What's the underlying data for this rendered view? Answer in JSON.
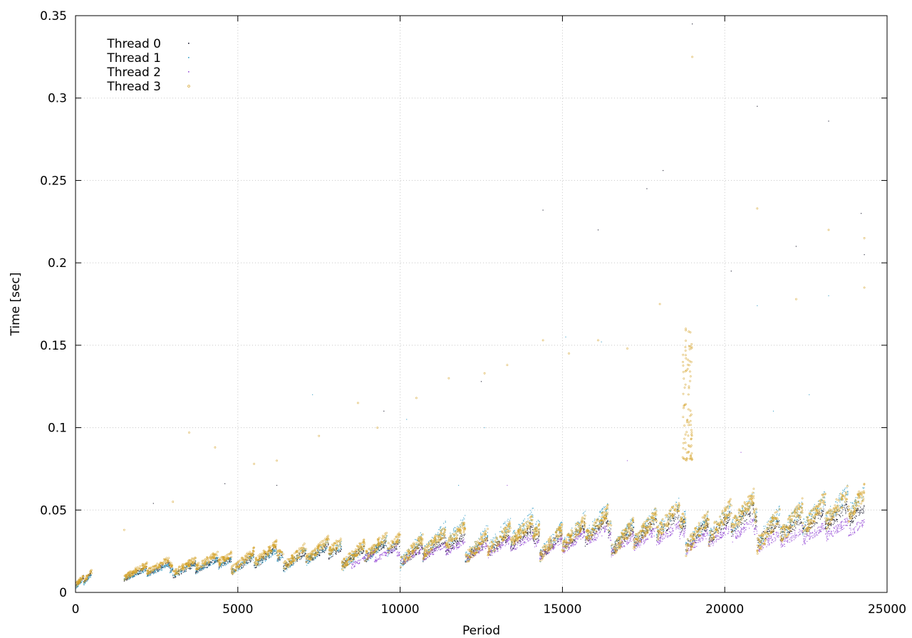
{
  "chart_data": {
    "type": "scatter",
    "title": "",
    "xlabel": "Period",
    "ylabel": "Time [sec]",
    "xlim": [
      0,
      25000
    ],
    "ylim": [
      0,
      0.35
    ],
    "xticks": [
      0,
      5000,
      10000,
      15000,
      20000,
      25000
    ],
    "xtick_labels": [
      "0",
      "5000",
      "10000",
      "15000",
      "20000",
      "25000"
    ],
    "yticks": [
      0,
      0.05,
      0.1,
      0.15,
      0.2,
      0.25,
      0.3,
      0.35
    ],
    "ytick_labels": [
      "0",
      "0.05",
      "0.1",
      "0.15",
      "0.2",
      "0.25",
      "0.3",
      "0.35"
    ],
    "grid": true,
    "legend_position": "top-left",
    "series": [
      {
        "name": "Thread 0",
        "color": "#1a1a2e",
        "marker": "dot",
        "segments": [
          [
            0,
            0.003,
            500,
            0.012
          ],
          [
            1500,
            0.008,
            3000,
            0.018
          ],
          [
            3000,
            0.01,
            4800,
            0.022
          ],
          [
            4800,
            0.012,
            6400,
            0.028
          ],
          [
            6400,
            0.015,
            8200,
            0.03
          ],
          [
            8200,
            0.016,
            10000,
            0.033
          ],
          [
            10000,
            0.017,
            12000,
            0.036
          ],
          [
            12000,
            0.02,
            14300,
            0.04
          ],
          [
            14300,
            0.022,
            16500,
            0.045
          ],
          [
            16500,
            0.025,
            18800,
            0.05
          ],
          [
            18800,
            0.027,
            21000,
            0.053
          ],
          [
            21000,
            0.03,
            24300,
            0.055
          ]
        ],
        "outliers": [
          [
            2400,
            0.054
          ],
          [
            4600,
            0.066
          ],
          [
            6200,
            0.065
          ],
          [
            9500,
            0.11
          ],
          [
            12500,
            0.128
          ],
          [
            14400,
            0.232
          ],
          [
            16100,
            0.22
          ],
          [
            17600,
            0.245
          ],
          [
            18100,
            0.256
          ],
          [
            19000,
            0.345
          ],
          [
            20200,
            0.195
          ],
          [
            21000,
            0.295
          ],
          [
            22200,
            0.21
          ],
          [
            23200,
            0.286
          ],
          [
            24200,
            0.23
          ],
          [
            24300,
            0.205
          ]
        ]
      },
      {
        "name": "Thread 1",
        "color": "#3aa0c8",
        "marker": "dot",
        "segments": [
          [
            0,
            0.003,
            500,
            0.011
          ],
          [
            1500,
            0.008,
            3000,
            0.017
          ],
          [
            3000,
            0.01,
            4800,
            0.022
          ],
          [
            4800,
            0.012,
            6400,
            0.027
          ],
          [
            6400,
            0.014,
            8200,
            0.032
          ],
          [
            8200,
            0.015,
            10000,
            0.035
          ],
          [
            10000,
            0.017,
            12000,
            0.045
          ],
          [
            12000,
            0.02,
            14300,
            0.05
          ],
          [
            14300,
            0.022,
            16500,
            0.052
          ],
          [
            16500,
            0.025,
            18800,
            0.055
          ],
          [
            18800,
            0.027,
            21000,
            0.058
          ],
          [
            21000,
            0.03,
            24300,
            0.065
          ]
        ],
        "outliers": [
          [
            7300,
            0.12
          ],
          [
            10200,
            0.105
          ],
          [
            11800,
            0.065
          ],
          [
            12600,
            0.1
          ],
          [
            15100,
            0.155
          ],
          [
            16200,
            0.152
          ],
          [
            21500,
            0.11
          ],
          [
            22600,
            0.12
          ],
          [
            23200,
            0.18
          ],
          [
            21000,
            0.174
          ]
        ]
      },
      {
        "name": "Thread 2",
        "color": "#9b55d8",
        "marker": "dot",
        "segments": [
          [
            8500,
            0.016,
            10000,
            0.028
          ],
          [
            10000,
            0.018,
            12000,
            0.032
          ],
          [
            12000,
            0.02,
            14300,
            0.036
          ],
          [
            14300,
            0.022,
            16500,
            0.04
          ],
          [
            16500,
            0.024,
            18800,
            0.042
          ],
          [
            18800,
            0.025,
            21000,
            0.044
          ],
          [
            21000,
            0.026,
            24300,
            0.045
          ]
        ],
        "outliers": [
          [
            13300,
            0.065
          ],
          [
            17000,
            0.08
          ],
          [
            20500,
            0.085
          ]
        ]
      },
      {
        "name": "Thread 3",
        "color": "#d4a22a",
        "marker": "circle",
        "segments": [
          [
            0,
            0.004,
            500,
            0.013
          ],
          [
            1500,
            0.009,
            3000,
            0.021
          ],
          [
            3000,
            0.011,
            4800,
            0.026
          ],
          [
            4800,
            0.013,
            6400,
            0.031
          ],
          [
            6400,
            0.015,
            8200,
            0.035
          ],
          [
            8200,
            0.016,
            10000,
            0.038
          ],
          [
            10000,
            0.018,
            12000,
            0.042
          ],
          [
            12000,
            0.02,
            14300,
            0.046
          ],
          [
            14300,
            0.022,
            16500,
            0.05
          ],
          [
            16500,
            0.024,
            18800,
            0.055
          ],
          [
            18800,
            0.026,
            21000,
            0.06
          ],
          [
            21000,
            0.028,
            24300,
            0.065
          ]
        ],
        "outliers": [
          [
            1500,
            0.038
          ],
          [
            3000,
            0.055
          ],
          [
            3500,
            0.097
          ],
          [
            4300,
            0.088
          ],
          [
            5500,
            0.078
          ],
          [
            6200,
            0.08
          ],
          [
            7500,
            0.095
          ],
          [
            8700,
            0.115
          ],
          [
            9300,
            0.1
          ],
          [
            10500,
            0.118
          ],
          [
            11500,
            0.13
          ],
          [
            12600,
            0.133
          ],
          [
            13300,
            0.138
          ],
          [
            14400,
            0.153
          ],
          [
            15200,
            0.145
          ],
          [
            16100,
            0.153
          ],
          [
            17000,
            0.148
          ],
          [
            18000,
            0.175
          ],
          [
            18800,
            0.16
          ],
          [
            19000,
            0.325
          ],
          [
            21000,
            0.233
          ],
          [
            22200,
            0.178
          ],
          [
            23200,
            0.22
          ],
          [
            24300,
            0.215
          ],
          [
            24300,
            0.185
          ]
        ],
        "spike": [
          18700,
          19000,
          0.08,
          0.16
        ]
      }
    ]
  }
}
